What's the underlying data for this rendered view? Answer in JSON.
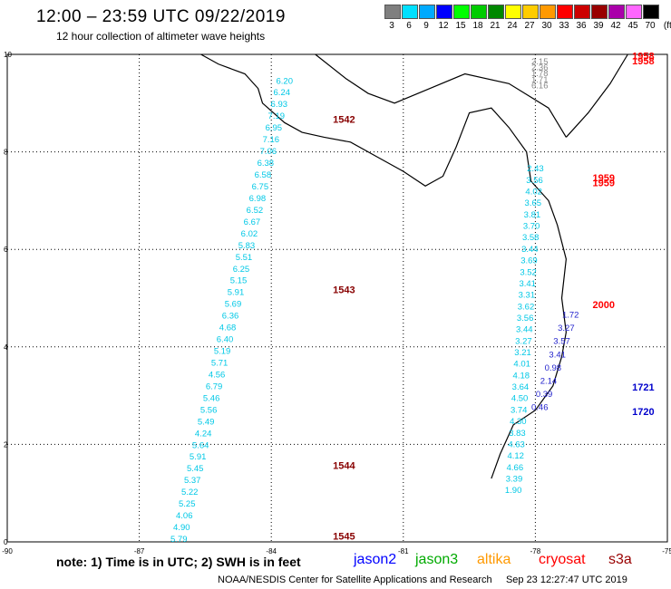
{
  "header": {
    "title": "12:00 – 23:59 UTC 09/22/2019",
    "subtitle": "12 hour collection of altimeter wave heights"
  },
  "colorbar": {
    "labels": [
      "3",
      "6",
      "9",
      "12",
      "15",
      "18",
      "21",
      "24",
      "27",
      "30",
      "33",
      "36",
      "39",
      "42",
      "45",
      "70"
    ],
    "unit": "(ft)",
    "colors": [
      "#7f7f7f",
      "#00e0ff",
      "#00aaff",
      "#0000ff",
      "#00ff00",
      "#00cc00",
      "#008800",
      "#ffff00",
      "#ffcc00",
      "#ff9900",
      "#ff0000",
      "#cc0000",
      "#990000",
      "#aa00aa",
      "#ff66ff",
      "#000000"
    ]
  },
  "axes": {
    "x_ticks": [
      "-90",
      "-87",
      "-84",
      "-81",
      "-78",
      "-75"
    ],
    "y_ticks": [
      "0",
      "2",
      "4",
      "6",
      "8",
      "10"
    ]
  },
  "tracks": [
    {
      "satellite": "s3a",
      "color": "#00c8e6",
      "times": [
        {
          "label": "1542",
          "lat": 8.6
        },
        {
          "label": "1543",
          "lat": 5.1
        },
        {
          "label": "1544",
          "lat": 1.5
        },
        {
          "label": "1545",
          "lat": 0.05
        }
      ],
      "values": [
        "6.20",
        "6.24",
        "6.93",
        "7.19",
        "6.95",
        "7.16",
        "7.06",
        "6.38",
        "6.58",
        "6.75",
        "6.98",
        "6.52",
        "6.67",
        "6.02",
        "5.83",
        "5.51",
        "6.25",
        "5.15",
        "5.91",
        "5.69",
        "6.36",
        "4.68",
        "6.40",
        "5.19",
        "5.71",
        "4.56",
        "6.79",
        "5.46",
        "5.56",
        "5.49",
        "4.24",
        "5.64",
        "5.91",
        "5.45",
        "5.37",
        "5.22",
        "5.25",
        "4.06",
        "4.90",
        "5.79"
      ]
    },
    {
      "satellite": "s3a",
      "color": "#00c8e6",
      "times": [
        {
          "label": "1959",
          "lat": 7.4
        },
        {
          "label": "1959",
          "lat": 7.3
        },
        {
          "label": "2000",
          "lat": 4.8
        }
      ],
      "values": [
        "2.43",
        "3.56",
        "4.02",
        "3.65",
        "3.81",
        "3.70",
        "3.58",
        "3.44",
        "3.69",
        "3.52",
        "3.41",
        "3.31",
        "3.62",
        "3.56",
        "3.44",
        "3.27",
        "3.21",
        "4.01",
        "4.18",
        "3.64",
        "4.50",
        "3.74",
        "4.30",
        "3.83",
        "4.63",
        "4.12",
        "4.66",
        "3.39",
        "1.90"
      ]
    },
    {
      "satellite": "jason2",
      "color": "#2222cc",
      "times": [
        {
          "label": "1721",
          "lat": 3.1
        },
        {
          "label": "1720",
          "lat": 2.6
        }
      ],
      "values": [
        "1.72",
        "3.27",
        "3.57",
        "3.41",
        "0.98",
        "2.14",
        "0.39",
        "0.46"
      ]
    },
    {
      "satellite": "cryosat",
      "color": "#888888",
      "times": [
        {
          "label": "1958",
          "lat": 9.9
        },
        {
          "label": "1958",
          "lat": 9.8
        }
      ],
      "values": [
        "2.15",
        "2.36",
        "1.78",
        "1.71",
        "6.16"
      ]
    }
  ],
  "legend": {
    "note": "note: 1) Time is in UTC; 2) SWH is in feet",
    "satellites": [
      {
        "name": "jason2",
        "color": "#0000ff"
      },
      {
        "name": "jason3",
        "color": "#00aa00"
      },
      {
        "name": "altika",
        "color": "#ff9900"
      },
      {
        "name": "cryosat",
        "color": "#ff0000"
      },
      {
        "name": "s3a",
        "color": "#990000"
      }
    ]
  },
  "footer": {
    "credit": "NOAA/NESDIS Center for Satellite Applications and Research",
    "timestamp": "Sep 23 12:27:47 UTC 2019"
  }
}
